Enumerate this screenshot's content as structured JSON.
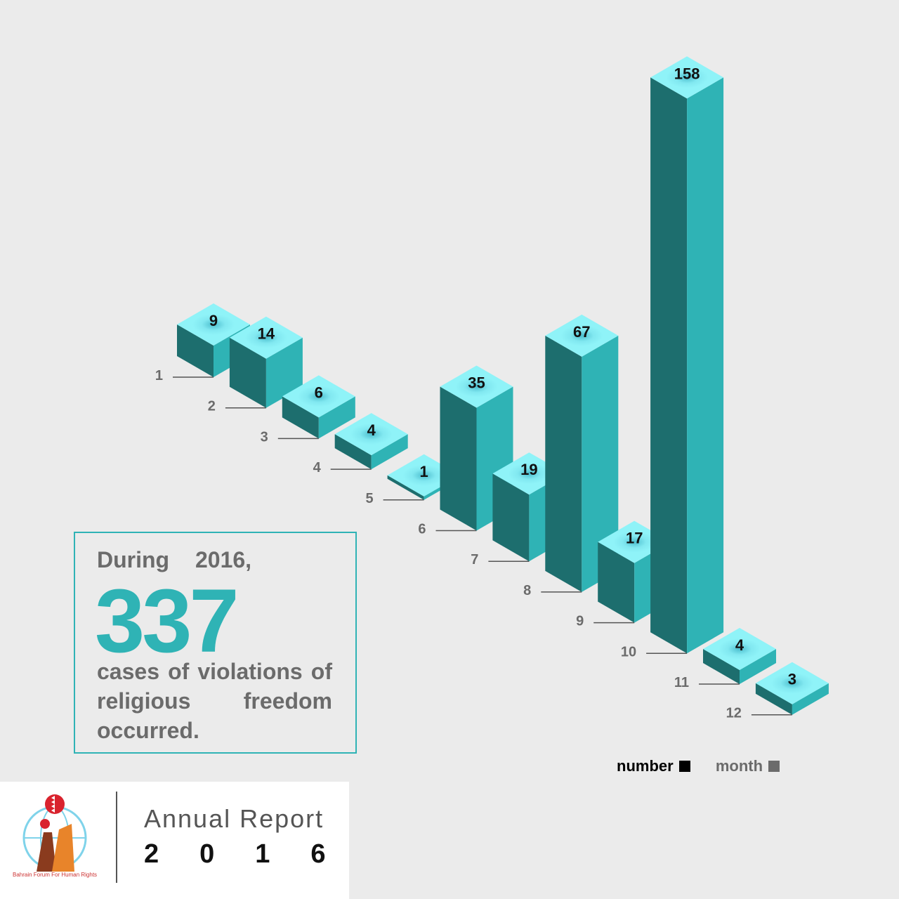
{
  "chart_data": {
    "type": "bar",
    "categories": [
      "1",
      "2",
      "3",
      "4",
      "5",
      "6",
      "7",
      "8",
      "9",
      "10",
      "11",
      "12"
    ],
    "values": [
      9,
      14,
      6,
      4,
      1,
      35,
      19,
      67,
      17,
      158,
      4,
      3
    ],
    "xlabel": "month",
    "ylabel": "number",
    "legend": [
      {
        "label": "number",
        "color": "#000000"
      },
      {
        "label": "month",
        "color": "#6b6b6b"
      }
    ]
  },
  "colors": {
    "bar_top": "#8ff3f8",
    "bar_left": "#1d6e6e",
    "bar_right": "#2fb3b5",
    "accent": "#2fb3b5",
    "background": "#ebebeb"
  },
  "info_box": {
    "line1": "During 2016,",
    "big_number": "337",
    "text": "cases of violations of religious freedom occurred."
  },
  "footer": {
    "report_title": "Annual Report",
    "year": "2016",
    "logo_text": "Bahrain Forum For Human Rights",
    "logo_icon": "bahrain-forum-logo-icon"
  }
}
